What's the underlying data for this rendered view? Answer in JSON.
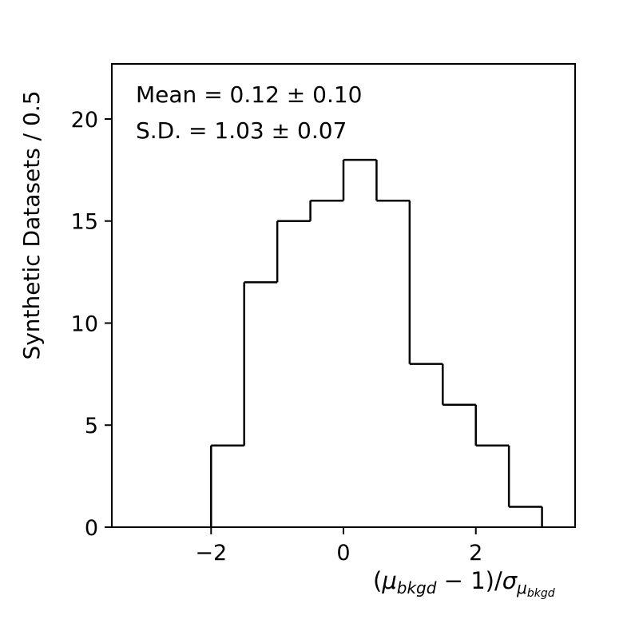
{
  "chart_data": {
    "type": "histogram",
    "title": "",
    "xlabel": {
      "open": "(",
      "mu": "μ",
      "sub1": "bkgd",
      "mid": " − 1)/",
      "sigma": "σ",
      "sub2_mu": "μ",
      "sub2_sub": "bkgd"
    },
    "ylabel": "Synthetic Datasets / 0.5",
    "xlim": [
      -3.5,
      3.5
    ],
    "ylim": [
      0,
      22.7
    ],
    "x_ticks": [
      -2,
      0,
      2
    ],
    "x_tick_labels": [
      "−2",
      "0",
      "2"
    ],
    "y_ticks": [
      0,
      5,
      10,
      15,
      20
    ],
    "y_tick_labels": [
      "0",
      "5",
      "10",
      "15",
      "20"
    ],
    "bin_edges": [
      -2.0,
      -1.5,
      -1.0,
      -0.5,
      0.0,
      0.5,
      1.0,
      1.5,
      2.0,
      2.5,
      3.0
    ],
    "counts": [
      4,
      12,
      15,
      16,
      18,
      16,
      8,
      6,
      4,
      1
    ],
    "annotations": {
      "mean": "Mean = 0.12 ± 0.10",
      "sd": "S.D. = 1.03 ± 0.07"
    },
    "colors": {
      "line": "#000000",
      "background": "#ffffff"
    }
  }
}
